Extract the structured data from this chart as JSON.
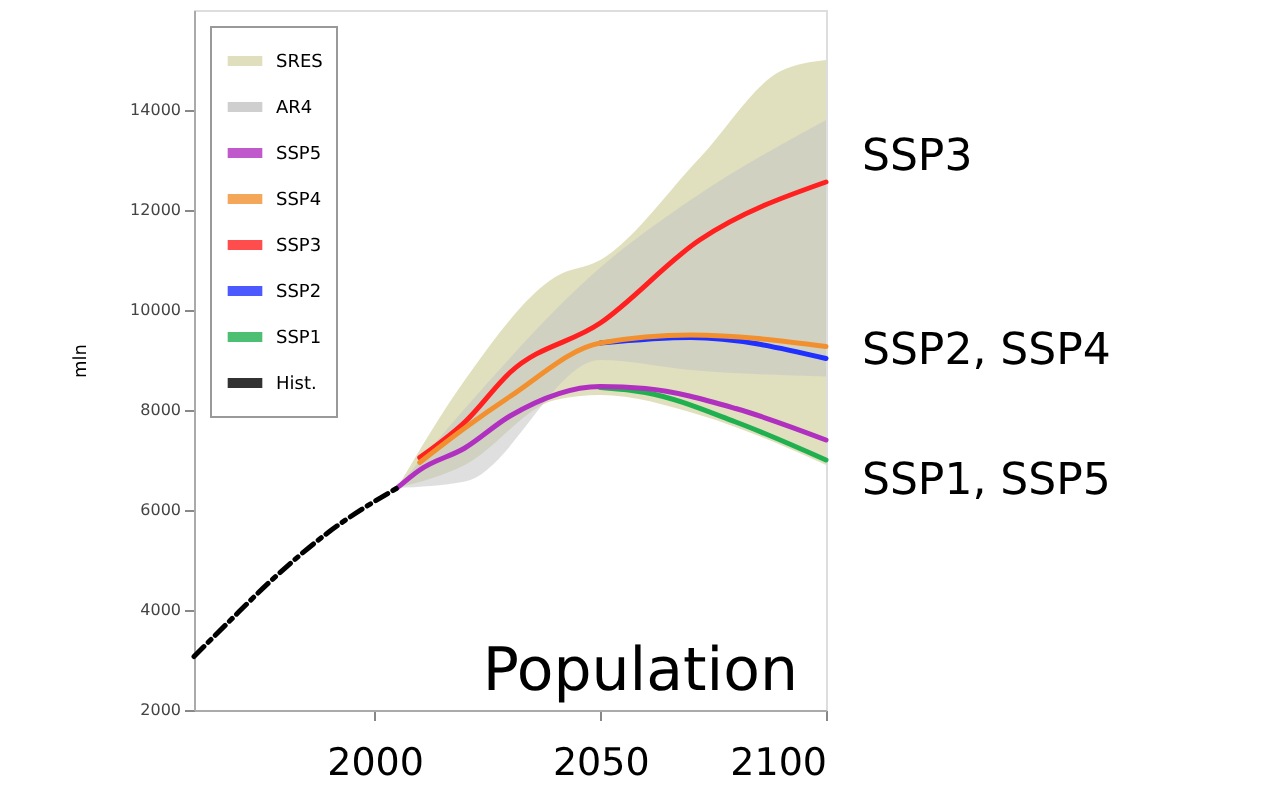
{
  "chart_data": {
    "type": "line",
    "ylabel": "mln",
    "xlim": [
      1960,
      2100
    ],
    "xticks": [
      2000,
      2050,
      2100
    ],
    "ylim": [
      2000,
      16000
    ],
    "yticks": [
      2000,
      4000,
      6000,
      8000,
      10000,
      12000,
      14000
    ],
    "grid": false,
    "legend": "top left",
    "marker": "none",
    "series": [
      {
        "name": "SRES",
        "type": "area",
        "color": "#d8d8ae",
        "x": [
          2005,
          2020,
          2040,
          2050,
          2072,
          2090,
          2100
        ],
        "values": [
          null,
          null,
          null,
          null,
          null,
          null,
          null
        ],
        "lower": [
          6440,
          6900,
          8200,
          8300,
          7900,
          7300,
          6900
        ],
        "upper": [
          6440,
          8600,
          10660,
          11000,
          13040,
          14780,
          15000
        ]
      },
      {
        "name": "AR4",
        "type": "area",
        "color": "#c4c4c4",
        "x": [
          2005,
          2020,
          2050,
          2070,
          2100
        ],
        "values": [
          null,
          null,
          null,
          null,
          null
        ],
        "lower": [
          6440,
          6570,
          9000,
          8800,
          8670
        ],
        "upper": [
          6440,
          8030,
          10850,
          12200,
          13800
        ]
      },
      {
        "name": "SSP5",
        "color": "#b030c0",
        "x": [
          2005,
          2010,
          2020,
          2030,
          2050,
          2060,
          2080,
          2100
        ],
        "values": [
          6440,
          6800,
          7240,
          7880,
          8470,
          8430,
          8030,
          7400
        ]
      },
      {
        "name": "SSP4",
        "color": "#f29030",
        "x": [
          2010,
          2020,
          2030,
          2050,
          2070,
          2100
        ],
        "values": [
          6950,
          7640,
          8270,
          9340,
          9500,
          9270
        ]
      },
      {
        "name": "SSP3",
        "color": "#ff2020",
        "x": [
          2010,
          2020,
          2030,
          2050,
          2072,
          2100
        ],
        "values": [
          7050,
          7760,
          8750,
          9740,
          11400,
          12560
        ]
      },
      {
        "name": "SSP2",
        "color": "#2030ff",
        "x": [
          2050,
          2070,
          2100
        ],
        "values": [
          9340,
          9450,
          9030
        ]
      },
      {
        "name": "SSP1",
        "color": "#20b050",
        "x": [
          2050,
          2060,
          2080,
          2100
        ],
        "values": [
          8450,
          8350,
          7760,
          7000
        ]
      },
      {
        "name": "Hist.",
        "color": "#000000",
        "line_style": "dashed",
        "x": [
          1960,
          1968,
          1977,
          1990,
          2005
        ],
        "values": [
          3070,
          3790,
          4580,
          5570,
          6440
        ]
      }
    ],
    "annotations": [
      "SSP3",
      "SSP2, SSP4",
      "SSP1, SSP5",
      "Population"
    ]
  }
}
